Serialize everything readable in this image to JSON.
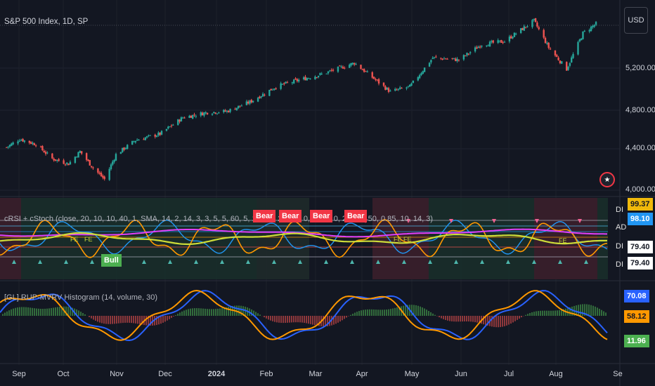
{
  "chart_data": {
    "type": "candlestick",
    "title": "S&P 500 Index, 1D, SP",
    "currency": "USD",
    "y_ticks": [
      "5,200.00",
      "4,800.00",
      "4,400.00",
      "4,000.00"
    ],
    "ylim": [
      3950,
      5700
    ],
    "x_ticks": [
      "Sep",
      "Oct",
      "Nov",
      "Dec",
      "2024",
      "Feb",
      "Mar",
      "Apr",
      "May",
      "Jun",
      "Jul",
      "Aug",
      "Se"
    ],
    "close_path": [
      {
        "date": "2023-08-28",
        "close": 4430
      },
      {
        "date": "2023-09-05",
        "close": 4510
      },
      {
        "date": "2023-09-15",
        "close": 4460
      },
      {
        "date": "2023-09-25",
        "close": 4320
      },
      {
        "date": "2023-10-05",
        "close": 4270
      },
      {
        "date": "2023-10-12",
        "close": 4390
      },
      {
        "date": "2023-10-20",
        "close": 4230
      },
      {
        "date": "2023-10-27",
        "close": 4120
      },
      {
        "date": "2023-11-03",
        "close": 4360
      },
      {
        "date": "2023-11-15",
        "close": 4500
      },
      {
        "date": "2023-11-30",
        "close": 4560
      },
      {
        "date": "2023-12-14",
        "close": 4720
      },
      {
        "date": "2023-12-29",
        "close": 4770
      },
      {
        "date": "2024-01-10",
        "close": 4780
      },
      {
        "date": "2024-01-24",
        "close": 4870
      },
      {
        "date": "2024-02-09",
        "close": 5020
      },
      {
        "date": "2024-02-22",
        "close": 5080
      },
      {
        "date": "2024-03-08",
        "close": 5140
      },
      {
        "date": "2024-03-28",
        "close": 5250
      },
      {
        "date": "2024-04-19",
        "close": 4970
      },
      {
        "date": "2024-05-01",
        "close": 5020
      },
      {
        "date": "2024-05-15",
        "close": 5300
      },
      {
        "date": "2024-05-31",
        "close": 5280
      },
      {
        "date": "2024-06-14",
        "close": 5430
      },
      {
        "date": "2024-06-28",
        "close": 5460
      },
      {
        "date": "2024-07-16",
        "close": 5660
      },
      {
        "date": "2024-07-25",
        "close": 5400
      },
      {
        "date": "2024-08-05",
        "close": 5190
      },
      {
        "date": "2024-08-15",
        "close": 5540
      },
      {
        "date": "2024-08-23",
        "close": 5630
      }
    ]
  },
  "ui": {
    "currency_label": "USD",
    "flag_icon": "us-flag-icon",
    "colors": {
      "up": "#26a69a",
      "down": "#ef5350",
      "background": "#131722"
    }
  },
  "panes": {
    "crsi": {
      "title": "cRSI + cStoch (close, 20, 10, 10, 40, 1, SMA, 14, 2, 14, 3, 3, 5, 5, 60, 5, 14, 14, 23, 17, 0, 55, 5, 0, 22, 20, 50, 0.85, 10, 14, 3)",
      "bear_labels": [
        "Bear",
        "Bear",
        "Bear",
        "Bear"
      ],
      "bull_label": "Bull",
      "small_tags": [
        "FE",
        "FE FE",
        "FE",
        "FE"
      ],
      "side_values": [
        {
          "label": "DI",
          "value": "99.37",
          "color": "#f0b90b"
        },
        {
          "label": "AD",
          "value": "98.10",
          "color": "#2196f3"
        },
        {
          "label": "DI",
          "value": "79.40",
          "color": "#ffffff"
        },
        {
          "label": "DI",
          "value": "79.40",
          "color": "#ffffff"
        }
      ]
    },
    "mvrv": {
      "title": "[GL] RUP-MVRV Histogram (14, volume, 30)",
      "side_values": [
        {
          "value": "70.08",
          "color": "#2962ff"
        },
        {
          "value": "58.12",
          "color": "#ff9800"
        },
        {
          "value": "11.96",
          "color": "#4caf50"
        }
      ]
    }
  }
}
